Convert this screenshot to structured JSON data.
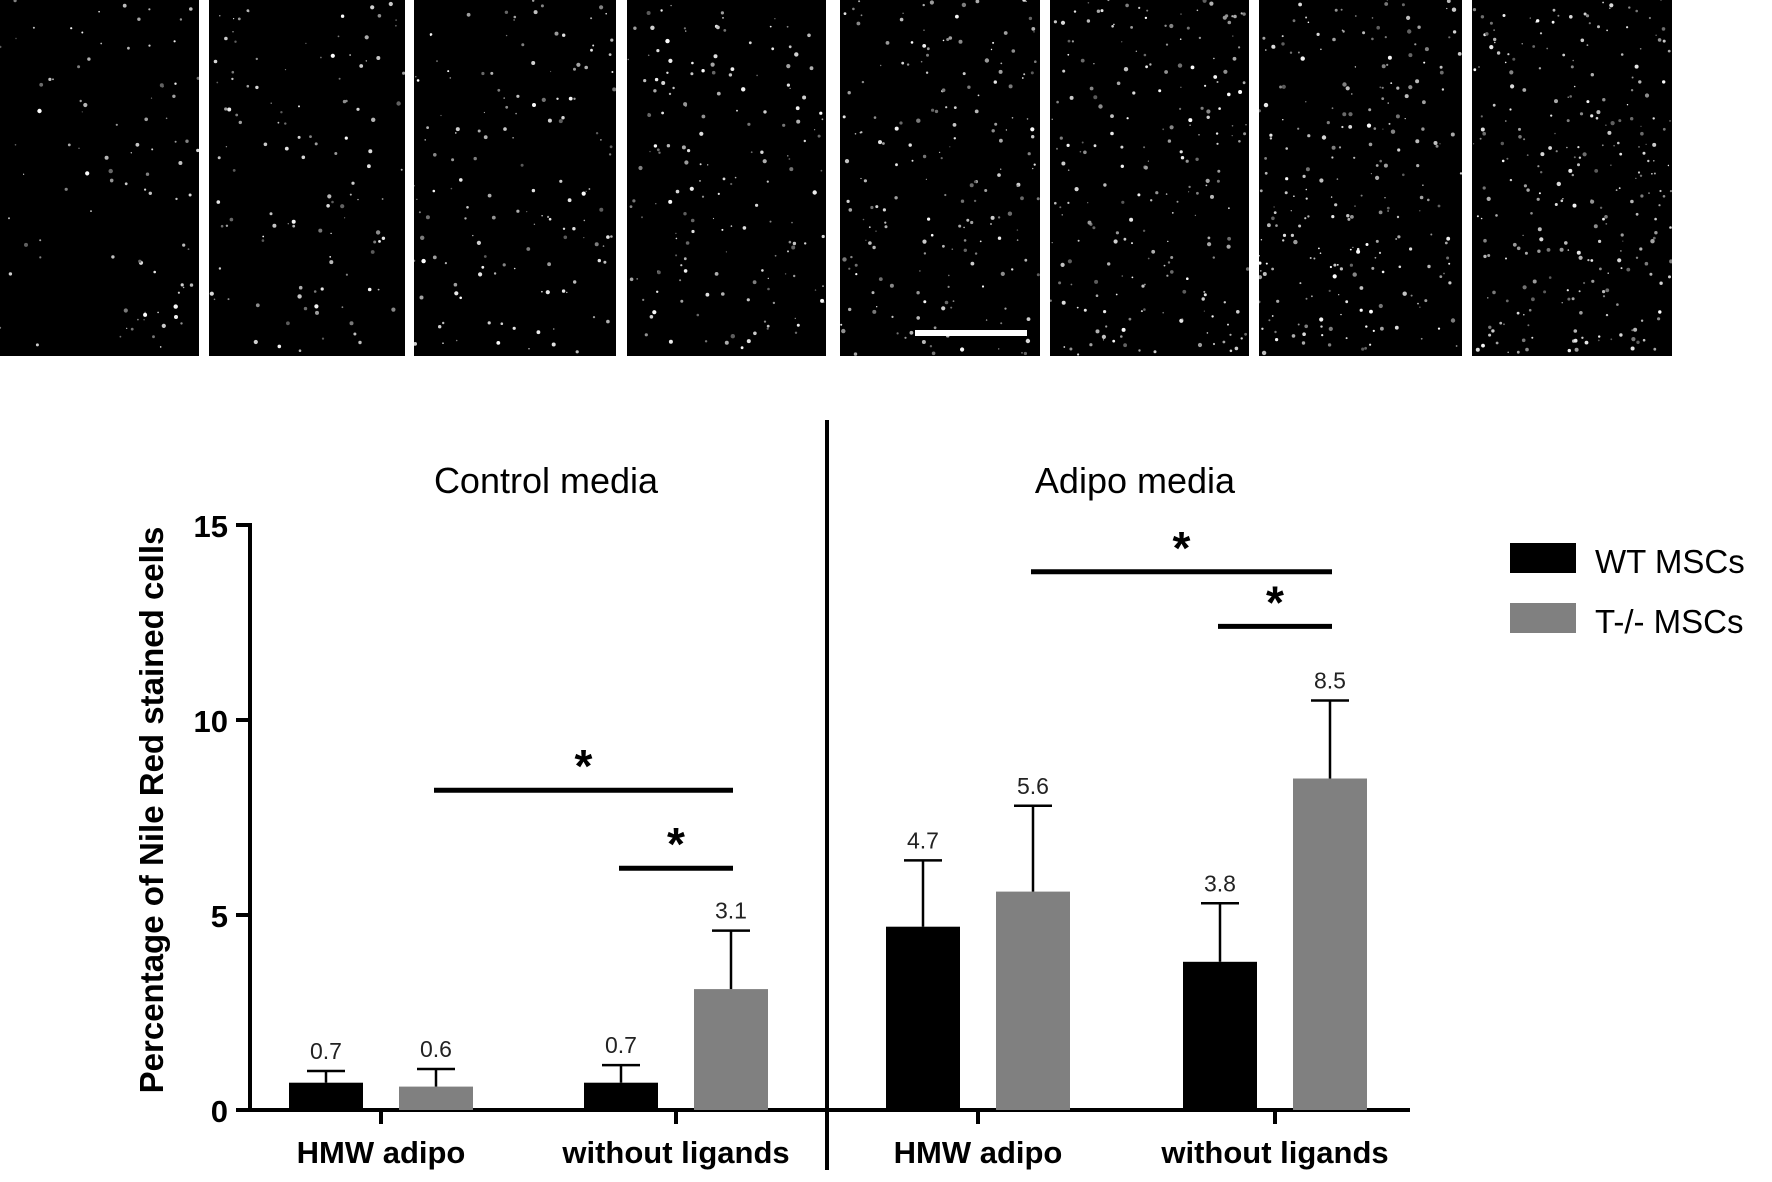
{
  "panels": [
    {
      "title": "Control media"
    },
    {
      "title": "Adipo media"
    }
  ],
  "micrographs": [
    {
      "scale_bar": false
    },
    {
      "scale_bar": false
    },
    {
      "scale_bar": false
    },
    {
      "scale_bar": false
    },
    {
      "scale_bar": true
    },
    {
      "scale_bar": false
    },
    {
      "scale_bar": false
    },
    {
      "scale_bar": false
    }
  ],
  "colors": {
    "wt": "#000000",
    "ko": "#808080",
    "axis": "#000000"
  },
  "chart_data": {
    "type": "bar",
    "ylabel": "Percentage of Nile Red stained cells",
    "xlabel": "",
    "ylim": [
      0,
      15
    ],
    "yticks": [
      0,
      5,
      10,
      15
    ],
    "legend_position": "right",
    "categories": [
      "HMW adipo",
      "without ligands",
      "HMW adipo",
      "without ligands"
    ],
    "category_panel": [
      0,
      0,
      1,
      1
    ],
    "series": [
      {
        "name": "WT MSCs",
        "values": [
          0.7,
          0.7,
          4.7,
          3.8
        ],
        "errors": [
          0.3,
          0.45,
          1.7,
          1.5
        ],
        "labels": [
          "0.7",
          "0.7",
          "4.7",
          "3.8"
        ]
      },
      {
        "name": "T-/- MSCs",
        "values": [
          0.6,
          3.1,
          5.6,
          8.5
        ],
        "errors": [
          0.45,
          1.5,
          2.2,
          2.0
        ],
        "labels": [
          "0.6",
          "3.1",
          "5.6",
          "8.5"
        ]
      }
    ],
    "significance": [
      {
        "label": "*",
        "from": {
          "category": 0,
          "series": 1
        },
        "to": {
          "category": 1,
          "series": 1
        },
        "y": 8.2
      },
      {
        "label": "*",
        "from": {
          "category": 1,
          "series": 0
        },
        "to": {
          "category": 1,
          "series": 1
        },
        "y": 6.2
      },
      {
        "label": "*",
        "from": {
          "category": 2,
          "series": 1
        },
        "to": {
          "category": 3,
          "series": 1
        },
        "y": 13.8
      },
      {
        "label": "*",
        "from": {
          "category": 3,
          "series": 0
        },
        "to": {
          "category": 3,
          "series": 1
        },
        "y": 12.4
      }
    ]
  }
}
